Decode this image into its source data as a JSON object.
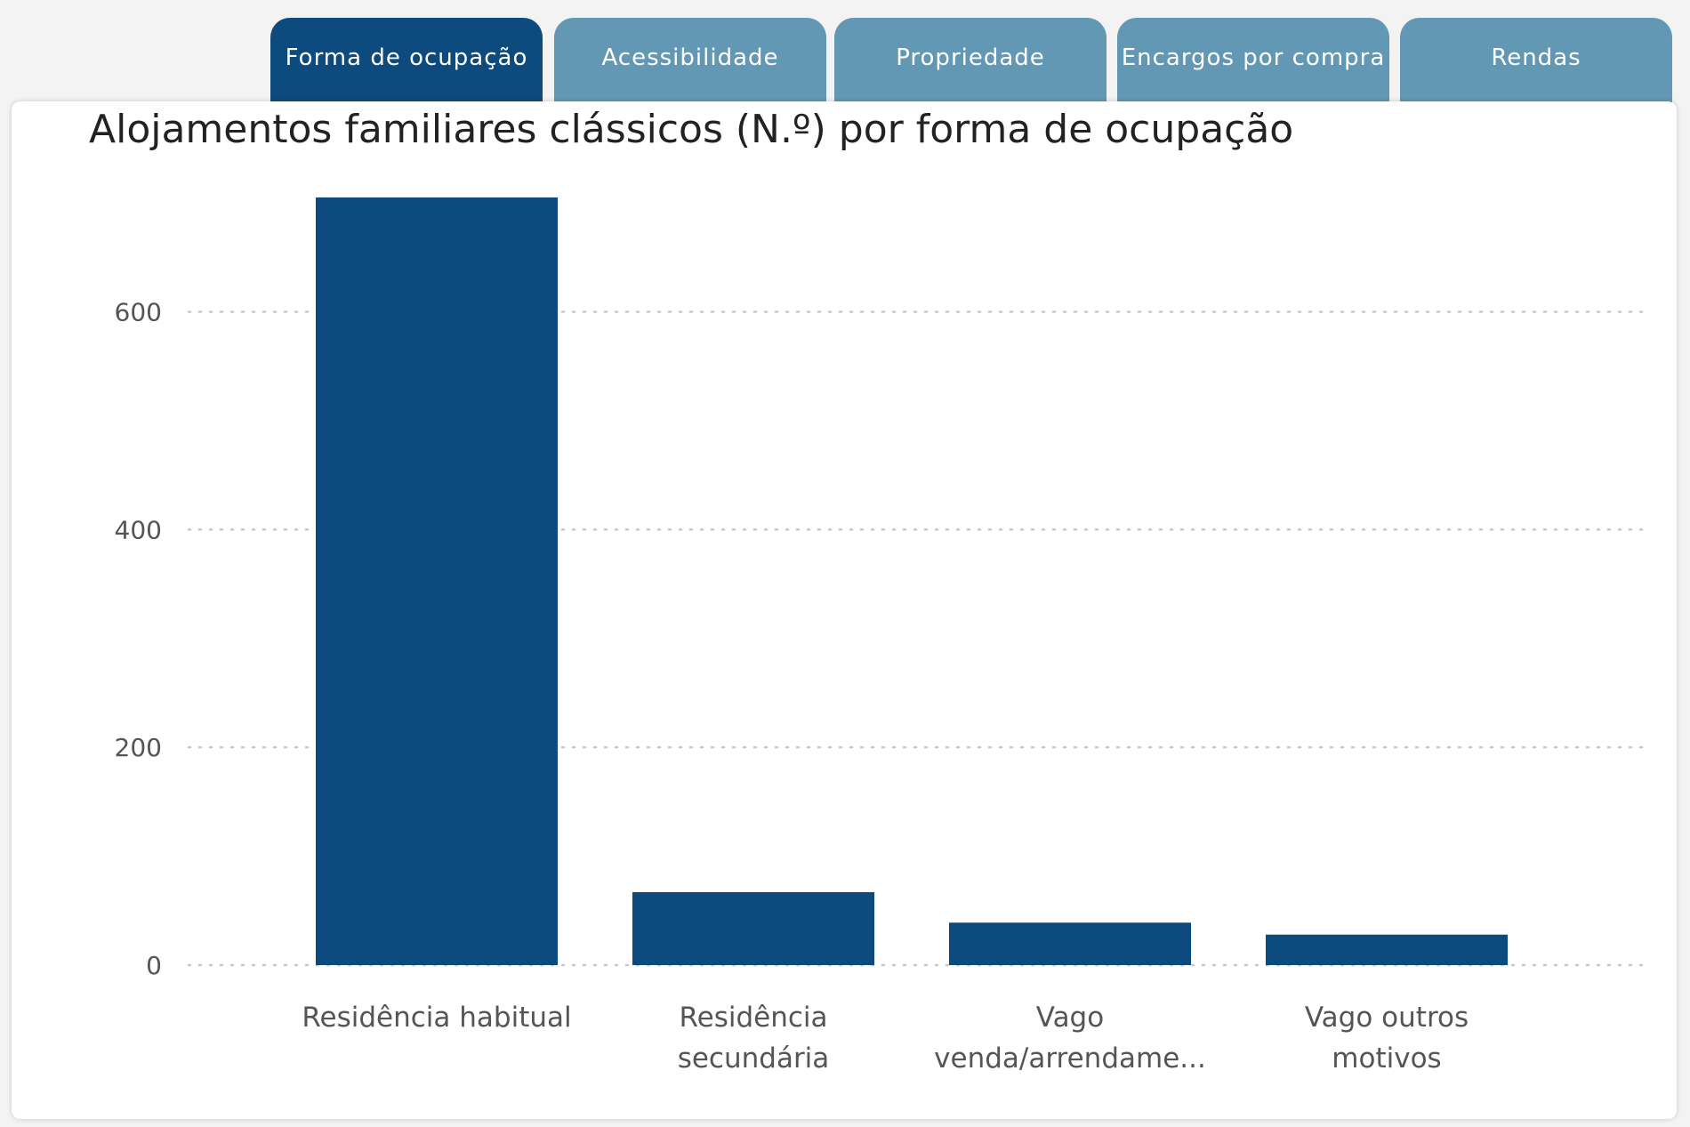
{
  "tabs": [
    {
      "label": "Forma de ocupação",
      "active": true
    },
    {
      "label": "Acessibilidade",
      "active": false
    },
    {
      "label": "Propriedade",
      "active": false
    },
    {
      "label": "Encargos por compra",
      "active": false
    },
    {
      "label": "Rendas",
      "active": false
    }
  ],
  "colors": {
    "bar": "#0d4a7d",
    "tab_active": "#0d4a7d",
    "tab_inactive": "#6398b4",
    "grid": "#c8c8c8"
  },
  "chart_data": {
    "type": "bar",
    "title": "Alojamentos familiares clássicos (N.º) por forma de ocupação",
    "categories": [
      [
        "Residência habitual"
      ],
      [
        "Residência",
        "secundária"
      ],
      [
        "Vago",
        "venda/arrendame..."
      ],
      [
        "Vago outros",
        "motivos"
      ]
    ],
    "values": [
      705,
      67,
      39,
      28
    ],
    "yticks": [
      0,
      200,
      400,
      600
    ],
    "ylim": [
      0,
      705
    ],
    "grid": true
  }
}
